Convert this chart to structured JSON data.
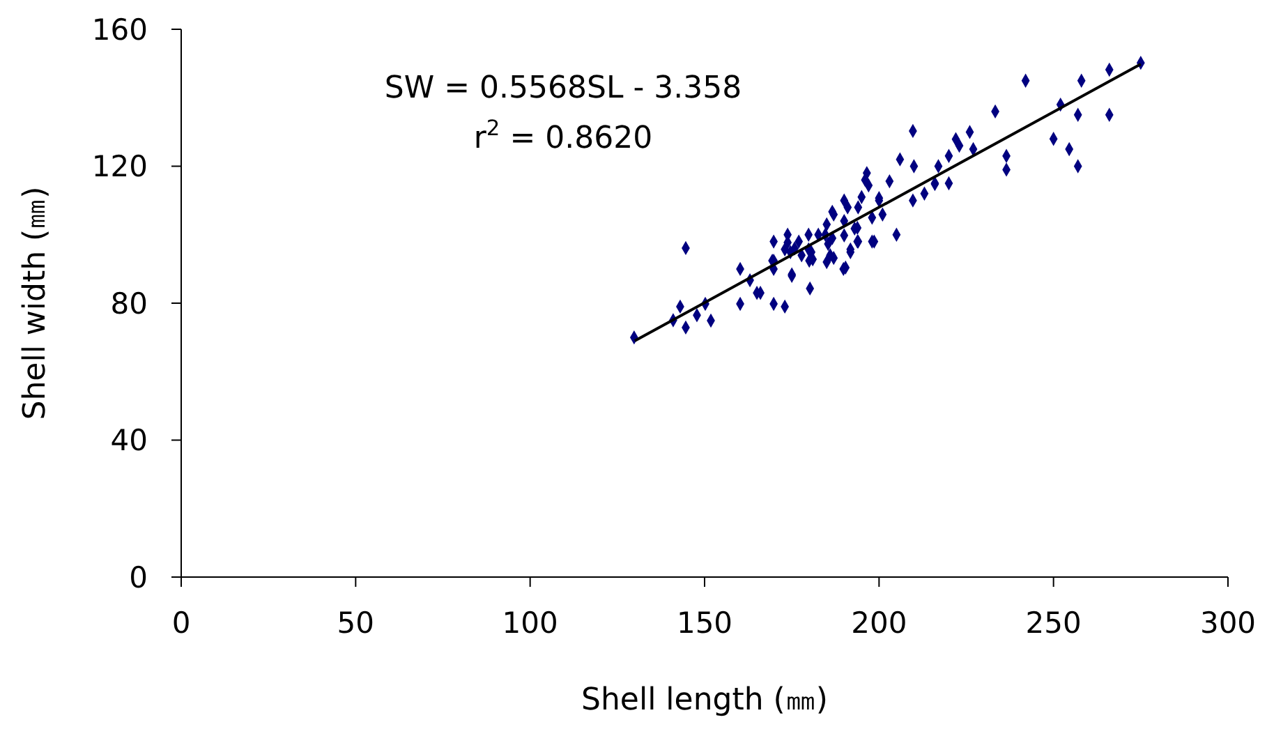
{
  "chart_data": {
    "type": "scatter",
    "xlabel": "Shell length (㎜)",
    "ylabel": "Shell width (㎜)",
    "xlim": [
      0,
      300
    ],
    "ylim": [
      0,
      160
    ],
    "xticks": [
      0,
      50,
      100,
      150,
      200,
      250,
      300
    ],
    "yticks": [
      0,
      40,
      80,
      120,
      160
    ],
    "grid": false,
    "annotations": [
      "SW = 0.5568SL - 3.358",
      "r$^{2}$ = 0.8620"
    ],
    "series": [
      {
        "color": "#000080",
        "marker": "diamond",
        "x": [
          129.8,
          141,
          144.6,
          143,
          144.6,
          147.8,
          150.2,
          151.8,
          160.2,
          160.2,
          163,
          165,
          166,
          169.8,
          169.8,
          169.8,
          169.8,
          173,
          173.8,
          175,
          173.8,
          177,
          174.6,
          177.8,
          180.2,
          179.8,
          181,
          180.6,
          185,
          189.8,
          191.8,
          193.8,
          209.7,
          206,
          210,
          217,
          196.5,
          196,
          203,
          197,
          195,
          200,
          200,
          209.7,
          213,
          216,
          190,
          191,
          194,
          186.6,
          187,
          185,
          190,
          193.8,
          201,
          198,
          182.6,
          184.6,
          186.6,
          185.4,
          190,
          193,
          198.6,
          205,
          173,
          175.8,
          179.8,
          180,
          186,
          187,
          191.8,
          194,
          198,
          190.4,
          169.4,
          175,
          275,
          266,
          258,
          242,
          252,
          257,
          266,
          233.3,
          250,
          254.5,
          257,
          236.5,
          236.5,
          226,
          222,
          223,
          227,
          220,
          220,
          216
        ],
        "values": [
          70,
          75,
          96.1,
          79,
          72.9,
          76.5,
          79.8,
          74.9,
          90,
          79.8,
          86.7,
          83,
          83,
          98,
          90,
          92.4,
          79.8,
          79,
          100,
          88,
          97.7,
          98,
          94.9,
          94,
          84.3,
          100,
          92.8,
          94.9,
          92,
          90,
          94.9,
          98,
          130.3,
          122,
          120,
          120,
          118,
          116,
          115.6,
          114.4,
          111,
          110.7,
          110,
          110,
          112,
          114.8,
          110,
          108,
          108,
          106.7,
          105.9,
          103,
          104,
          102,
          105.9,
          105,
          100,
          100,
          99,
          97.3,
          99.8,
          101.8,
          98,
          100,
          95.7,
          96,
          95.7,
          92.4,
          94,
          93.2,
          95.7,
          98,
          98,
          90.4,
          92.4,
          88.4,
          150.2,
          148.2,
          145,
          145,
          138,
          135,
          135,
          136,
          128,
          125,
          120,
          123,
          119,
          130,
          127.9,
          126,
          125,
          123,
          115,
          115
        ]
      },
      {
        "type": "line",
        "color": "#000000",
        "marker": "none",
        "x": [
          130,
          275
        ],
        "values": [
          69,
          149.8
        ]
      }
    ]
  }
}
